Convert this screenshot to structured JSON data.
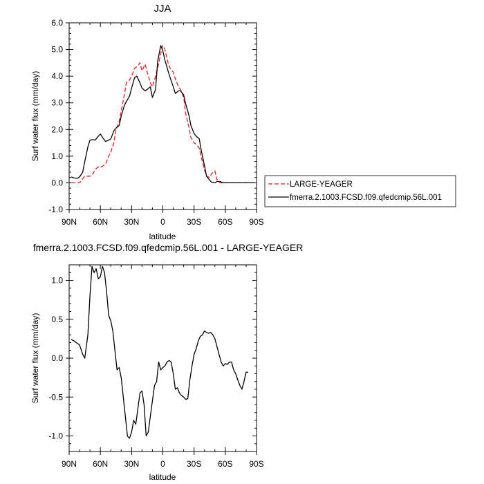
{
  "chart_data": [
    {
      "type": "line",
      "title": "JJA",
      "xlabel": "latitude",
      "ylabel": "Surf water flux (mm/day)",
      "xlim": [
        90,
        -90
      ],
      "ylim": [
        -1.0,
        6.0
      ],
      "x_ticks": [
        90,
        60,
        30,
        0,
        -30,
        -60,
        -90
      ],
      "x_tick_labels": [
        "90N",
        "60N",
        "30N",
        "0",
        "30S",
        "60S",
        "90S"
      ],
      "y_ticks": [
        -1.0,
        0.0,
        1.0,
        2.0,
        3.0,
        4.0,
        5.0,
        6.0
      ],
      "y_tick_labels": [
        "-1.0",
        "0.0",
        "1.0",
        "2.0",
        "3.0",
        "4.0",
        "5.0",
        "6.0"
      ],
      "legend_position": "outside-right",
      "series": [
        {
          "name": "LARGE-YEAGER",
          "color": "#e8191e",
          "dash": true,
          "x": [
            88,
            85,
            80,
            77,
            75,
            72,
            70,
            67,
            65,
            62,
            60,
            57,
            55,
            52,
            50,
            47,
            45,
            42,
            40,
            37,
            35,
            32,
            30,
            27,
            25,
            22,
            20,
            17,
            15,
            12,
            10,
            7,
            5,
            2,
            0,
            -2,
            -5,
            -7,
            -10,
            -12,
            -15,
            -17,
            -20,
            -22,
            -25,
            -27,
            -30,
            -32,
            -35,
            -37,
            -40,
            -42,
            -45,
            -47,
            -50,
            -52,
            -55,
            -57,
            -60,
            -62,
            -65,
            -67,
            -70,
            -72,
            -75,
            -77,
            -80,
            -82
          ],
          "y": [
            0.0,
            0.0,
            0.0,
            0.15,
            0.25,
            0.25,
            0.25,
            0.35,
            0.5,
            0.6,
            0.58,
            0.65,
            0.7,
            1.0,
            1.15,
            1.5,
            2.0,
            2.3,
            2.7,
            3.3,
            3.75,
            3.85,
            4.0,
            4.3,
            4.35,
            4.5,
            4.2,
            4.45,
            4.15,
            3.75,
            3.6,
            4.0,
            4.3,
            4.85,
            5.15,
            5.0,
            4.5,
            4.3,
            4.15,
            3.9,
            3.6,
            3.5,
            3.2,
            2.6,
            2.1,
            1.7,
            1.5,
            1.45,
            1.3,
            0.95,
            0.5,
            0.25,
            0.2,
            0.35,
            0.45,
            0.12,
            0.0,
            0.0,
            0.0,
            0.0,
            0.0,
            0.0,
            0.0,
            0.0,
            0.0,
            0.0,
            0.0,
            0.0
          ]
        },
        {
          "name": "fmerra.2.1003.FCSD.f09.qfedcmip.56L.001",
          "color": "#000000",
          "dash": false,
          "x": [
            88,
            85,
            82,
            80,
            77,
            75,
            72,
            70,
            67,
            65,
            62,
            60,
            57,
            55,
            52,
            50,
            47,
            45,
            42,
            40,
            37,
            35,
            32,
            30,
            27,
            25,
            22,
            20,
            17,
            15,
            12,
            10,
            7,
            5,
            2,
            0,
            -2,
            -5,
            -7,
            -10,
            -12,
            -15,
            -17,
            -20,
            -22,
            -25,
            -27,
            -30,
            -32,
            -35,
            -37,
            -40,
            -42,
            -45,
            -47,
            -50,
            -52,
            -55,
            -57,
            -60,
            -62,
            -65,
            -67,
            -70,
            -72,
            -75,
            -77,
            -80,
            -82,
            -85,
            -88
          ],
          "y": [
            0.22,
            0.18,
            0.17,
            0.22,
            0.4,
            0.8,
            1.35,
            1.6,
            1.62,
            1.6,
            1.75,
            1.83,
            1.65,
            1.55,
            1.6,
            1.65,
            1.95,
            2.05,
            2.15,
            2.5,
            2.9,
            3.05,
            3.25,
            3.55,
            3.95,
            4.0,
            3.75,
            3.55,
            3.45,
            3.5,
            3.6,
            3.2,
            3.5,
            4.55,
            5.15,
            4.95,
            4.6,
            4.2,
            3.95,
            3.6,
            3.35,
            3.45,
            3.45,
            3.3,
            2.95,
            2.55,
            2.15,
            1.85,
            1.75,
            1.65,
            1.2,
            0.65,
            0.25,
            0.1,
            0.02,
            0.0,
            0.05,
            0.05,
            0.02,
            0.0,
            0.0,
            0.0,
            0.0,
            0.0,
            0.0,
            0.0,
            0.0,
            0.0,
            0.0,
            0.0,
            0.0
          ]
        }
      ]
    },
    {
      "type": "line",
      "title": "fmerra.2.1003.FCSD.f09.qfedcmip.56L.001 - LARGE-YEAGER",
      "xlabel": "latitude",
      "ylabel": "Surf water flux (mm/day)",
      "xlim": [
        90,
        -90
      ],
      "ylim": [
        -1.2,
        1.2
      ],
      "x_ticks": [
        90,
        60,
        30,
        0,
        -30,
        -60,
        -90
      ],
      "x_tick_labels": [
        "90N",
        "60N",
        "30N",
        "0",
        "30S",
        "60S",
        "90S"
      ],
      "y_ticks": [
        -1.0,
        -0.5,
        0.0,
        0.5,
        1.0
      ],
      "y_tick_labels": [
        "-1.0",
        "-0.5",
        "0.0",
        "0.5",
        "1.0"
      ],
      "series": [
        {
          "color": "#000000",
          "x": [
            88,
            85,
            80,
            77,
            75,
            72,
            70,
            68,
            66,
            64,
            62,
            60,
            58,
            56,
            54,
            52,
            50,
            48,
            46,
            44,
            42,
            40,
            38,
            36,
            34,
            32,
            30,
            28,
            26,
            24,
            22,
            20,
            18,
            16,
            14,
            12,
            10,
            8,
            6,
            4,
            2,
            0,
            -2,
            -4,
            -6,
            -8,
            -10,
            -12,
            -14,
            -16,
            -18,
            -20,
            -22,
            -24,
            -26,
            -28,
            -30,
            -32,
            -34,
            -36,
            -38,
            -40,
            -42,
            -44,
            -46,
            -48,
            -50,
            -52,
            -54,
            -56,
            -58,
            -60,
            -62,
            -64,
            -66,
            -68,
            -70,
            -72,
            -74,
            -76,
            -78,
            -80,
            -82
          ],
          "y": [
            0.24,
            0.22,
            0.17,
            0.05,
            0.0,
            0.3,
            0.8,
            1.18,
            1.1,
            1.15,
            1.02,
            1.05,
            1.18,
            1.1,
            0.85,
            0.55,
            0.48,
            0.35,
            0.1,
            -0.15,
            -0.12,
            -0.25,
            -0.5,
            -0.75,
            -1.0,
            -1.03,
            -0.95,
            -0.8,
            -0.85,
            -0.65,
            -0.45,
            -0.42,
            -0.6,
            -1.0,
            -0.95,
            -0.75,
            -0.55,
            -0.35,
            -0.3,
            -0.05,
            -0.15,
            -0.12,
            -0.1,
            -0.05,
            -0.03,
            -0.05,
            -0.2,
            -0.4,
            -0.38,
            -0.45,
            -0.48,
            -0.5,
            -0.53,
            -0.52,
            -0.28,
            -0.1,
            0.05,
            0.12,
            0.22,
            0.28,
            0.3,
            0.35,
            0.33,
            0.32,
            0.33,
            0.3,
            0.25,
            0.15,
            0.05,
            -0.05,
            -0.1,
            -0.07,
            -0.08,
            -0.05,
            -0.05,
            -0.15,
            -0.2,
            -0.28,
            -0.35,
            -0.4,
            -0.3,
            -0.18,
            -0.18
          ]
        }
      ]
    }
  ]
}
